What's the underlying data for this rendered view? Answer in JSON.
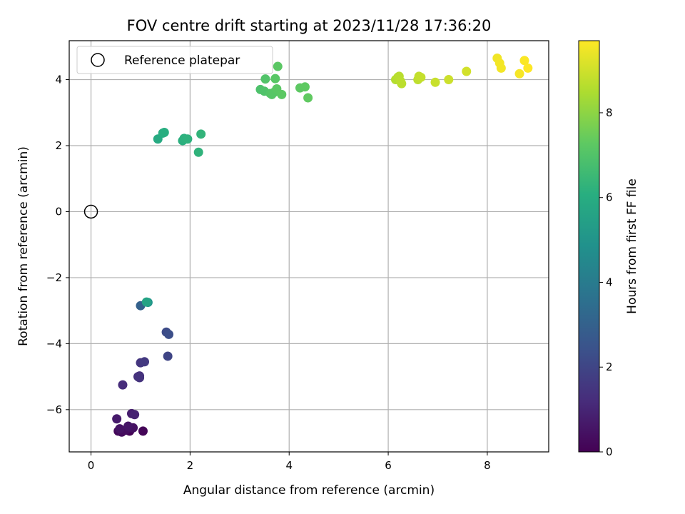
{
  "chart_data": {
    "type": "scatter",
    "title": "FOV centre drift starting at 2023/11/28 17:36:20",
    "xlabel": "Angular distance from reference (arcmin)",
    "ylabel": "Rotation from reference (arcmin)",
    "xlim": [
      -0.44,
      9.24
    ],
    "ylim": [
      -7.28,
      5.18
    ],
    "xticks": [
      0,
      2,
      4,
      6,
      8
    ],
    "yticks": [
      -6,
      -4,
      -2,
      0,
      2,
      4
    ],
    "grid": true,
    "legend": {
      "placement": "upper-left",
      "entries": [
        "Reference platepar"
      ]
    },
    "reference_point": {
      "x": 0,
      "y": 0
    },
    "colorbar": {
      "label": "Hours from first FF file",
      "min": 0,
      "max": 9.7,
      "ticks": [
        0,
        2,
        4,
        6,
        8
      ],
      "colormap": "viridis"
    },
    "points": [
      {
        "x": 0.78,
        "y": -6.65,
        "h": 0.05
      },
      {
        "x": 1.05,
        "y": -6.65,
        "h": 0.1
      },
      {
        "x": 0.55,
        "y": -6.65,
        "h": 0.2
      },
      {
        "x": 0.62,
        "y": -6.68,
        "h": 0.3
      },
      {
        "x": 0.7,
        "y": -6.62,
        "h": 0.35
      },
      {
        "x": 0.8,
        "y": -6.55,
        "h": 0.4
      },
      {
        "x": 0.85,
        "y": -6.55,
        "h": 0.45
      },
      {
        "x": 0.58,
        "y": -6.58,
        "h": 0.5
      },
      {
        "x": 0.75,
        "y": -6.5,
        "h": 0.55
      },
      {
        "x": 0.52,
        "y": -6.28,
        "h": 0.7
      },
      {
        "x": 0.82,
        "y": -6.12,
        "h": 0.8
      },
      {
        "x": 0.88,
        "y": -6.15,
        "h": 0.9
      },
      {
        "x": 0.64,
        "y": -5.25,
        "h": 1.2
      },
      {
        "x": 0.95,
        "y": -5.0,
        "h": 1.3
      },
      {
        "x": 0.98,
        "y": -4.98,
        "h": 1.35
      },
      {
        "x": 0.98,
        "y": -5.03,
        "h": 1.4
      },
      {
        "x": 1.0,
        "y": -4.58,
        "h": 1.5
      },
      {
        "x": 1.08,
        "y": -4.55,
        "h": 1.6
      },
      {
        "x": 1.55,
        "y": -4.38,
        "h": 2.0
      },
      {
        "x": 1.52,
        "y": -3.65,
        "h": 2.2
      },
      {
        "x": 1.57,
        "y": -3.72,
        "h": 2.3
      },
      {
        "x": 1.0,
        "y": -2.85,
        "h": 3.0
      },
      {
        "x": 1.15,
        "y": -2.75,
        "h": 5.0
      },
      {
        "x": 1.12,
        "y": -2.74,
        "h": 5.6
      },
      {
        "x": 1.35,
        "y": 2.2,
        "h": 5.9
      },
      {
        "x": 1.45,
        "y": 2.38,
        "h": 6.0
      },
      {
        "x": 1.48,
        "y": 2.4,
        "h": 6.05
      },
      {
        "x": 1.85,
        "y": 2.15,
        "h": 6.1
      },
      {
        "x": 1.88,
        "y": 2.22,
        "h": 6.15
      },
      {
        "x": 1.95,
        "y": 2.2,
        "h": 6.2
      },
      {
        "x": 2.17,
        "y": 1.8,
        "h": 6.25
      },
      {
        "x": 2.22,
        "y": 2.35,
        "h": 6.3
      },
      {
        "x": 3.42,
        "y": 3.7,
        "h": 6.9
      },
      {
        "x": 3.5,
        "y": 3.65,
        "h": 6.95
      },
      {
        "x": 3.52,
        "y": 4.02,
        "h": 7.0
      },
      {
        "x": 3.62,
        "y": 3.58,
        "h": 7.05
      },
      {
        "x": 3.65,
        "y": 3.55,
        "h": 7.1
      },
      {
        "x": 3.7,
        "y": 3.62,
        "h": 7.12
      },
      {
        "x": 3.72,
        "y": 4.03,
        "h": 7.15
      },
      {
        "x": 3.75,
        "y": 3.72,
        "h": 7.18
      },
      {
        "x": 3.77,
        "y": 4.4,
        "h": 7.2
      },
      {
        "x": 3.85,
        "y": 3.55,
        "h": 7.22
      },
      {
        "x": 4.22,
        "y": 3.75,
        "h": 7.25
      },
      {
        "x": 4.32,
        "y": 3.78,
        "h": 7.28
      },
      {
        "x": 4.38,
        "y": 3.45,
        "h": 7.3
      },
      {
        "x": 6.15,
        "y": 4.0,
        "h": 8.6
      },
      {
        "x": 6.2,
        "y": 4.08,
        "h": 8.62
      },
      {
        "x": 6.22,
        "y": 4.1,
        "h": 8.65
      },
      {
        "x": 6.25,
        "y": 3.95,
        "h": 8.68
      },
      {
        "x": 6.27,
        "y": 3.88,
        "h": 8.7
      },
      {
        "x": 6.6,
        "y": 4.0,
        "h": 8.75
      },
      {
        "x": 6.62,
        "y": 4.1,
        "h": 8.8
      },
      {
        "x": 6.66,
        "y": 4.07,
        "h": 8.83
      },
      {
        "x": 6.95,
        "y": 3.92,
        "h": 8.9
      },
      {
        "x": 7.22,
        "y": 4.0,
        "h": 8.95
      },
      {
        "x": 7.58,
        "y": 4.25,
        "h": 9.05
      },
      {
        "x": 8.2,
        "y": 4.65,
        "h": 9.5
      },
      {
        "x": 8.25,
        "y": 4.5,
        "h": 9.55
      },
      {
        "x": 8.28,
        "y": 4.35,
        "h": 9.55
      },
      {
        "x": 8.65,
        "y": 4.18,
        "h": 9.6
      },
      {
        "x": 8.75,
        "y": 4.58,
        "h": 9.65
      },
      {
        "x": 8.82,
        "y": 4.35,
        "h": 9.7
      }
    ]
  }
}
